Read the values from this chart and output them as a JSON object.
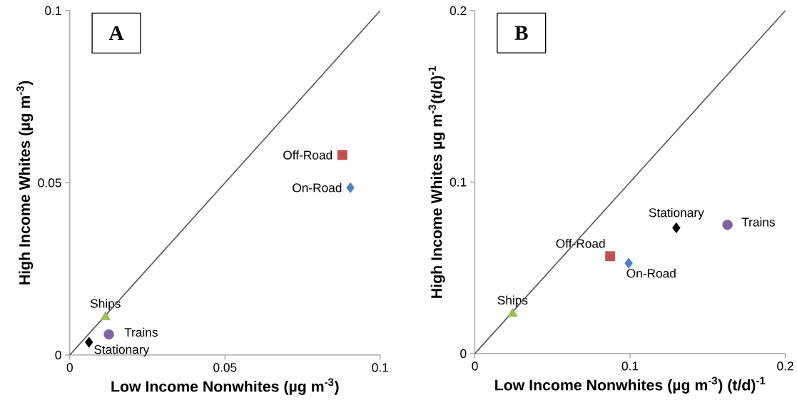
{
  "chart_data": [
    {
      "type": "scatter",
      "title": "A",
      "xlabel": "Low Income Nonwhites  (µg m$^{-3}$)",
      "ylabel": "High Income Whites (µg m$^{-3}$)",
      "xlim": [
        0,
        0.1
      ],
      "ylim": [
        0,
        0.1
      ],
      "xticks": [
        0,
        0.05,
        0.1
      ],
      "yticks": [
        0,
        0.05,
        0.1
      ],
      "grid": false,
      "legend": false,
      "series": [
        {
          "name": "On-Road",
          "color": "#4f81bd",
          "marker": "diamond",
          "x": [
            0.0904
          ],
          "values": [
            0.0486
          ]
        },
        {
          "name": "Off-Road",
          "color": "#c0504d",
          "marker": "square",
          "x": [
            0.0878
          ],
          "values": [
            0.0581
          ]
        },
        {
          "name": "Ships",
          "color": "#9bbb59",
          "marker": "triangle",
          "x": [
            0.0115
          ],
          "values": [
            0.011
          ]
        },
        {
          "name": "Trains",
          "color": "#8064a2",
          "marker": "circle",
          "x": [
            0.0126
          ],
          "values": [
            0.006
          ]
        },
        {
          "name": "Stationary",
          "color": "#000000",
          "marker": "diamond",
          "x": [
            0.0062
          ],
          "values": [
            0.0037
          ]
        },
        {
          "type": "line",
          "color": "#595959",
          "marker": "none",
          "x": [
            0,
            0.1
          ],
          "values": [
            0,
            0.1
          ]
        }
      ]
    },
    {
      "type": "scatter",
      "title": "B",
      "xlabel": "Low Income Nonwhites (µg m$^{-3}$) (t/d)$^{-1}$",
      "ylabel": "High Income Whites µg m$^{-3}$(t/d)$^{-1}$",
      "xlim": [
        0,
        0.2
      ],
      "ylim": [
        0,
        0.2
      ],
      "xticks": [
        0,
        0.1,
        0.2
      ],
      "yticks": [
        0,
        0.1,
        0.2
      ],
      "grid": false,
      "legend": false,
      "series": [
        {
          "name": "On-Road",
          "color": "#4f81bd",
          "marker": "diamond",
          "x": [
            0.0991
          ],
          "values": [
            0.0527
          ]
        },
        {
          "name": "Off-Road",
          "color": "#c0504d",
          "marker": "square",
          "x": [
            0.0872
          ],
          "values": [
            0.0568
          ]
        },
        {
          "name": "Ships",
          "color": "#9bbb59",
          "marker": "triangle",
          "x": [
            0.0243
          ],
          "values": [
            0.0232
          ]
        },
        {
          "name": "Trains",
          "color": "#8064a2",
          "marker": "circle",
          "x": [
            0.1628
          ],
          "values": [
            0.0751
          ]
        },
        {
          "name": "Stationary",
          "color": "#000000",
          "marker": "diamond",
          "x": [
            0.1298
          ],
          "values": [
            0.0734
          ]
        },
        {
          "type": "line",
          "color": "#595959",
          "marker": "none",
          "x": [
            0,
            0.2
          ],
          "values": [
            0,
            0.2
          ]
        }
      ]
    }
  ]
}
